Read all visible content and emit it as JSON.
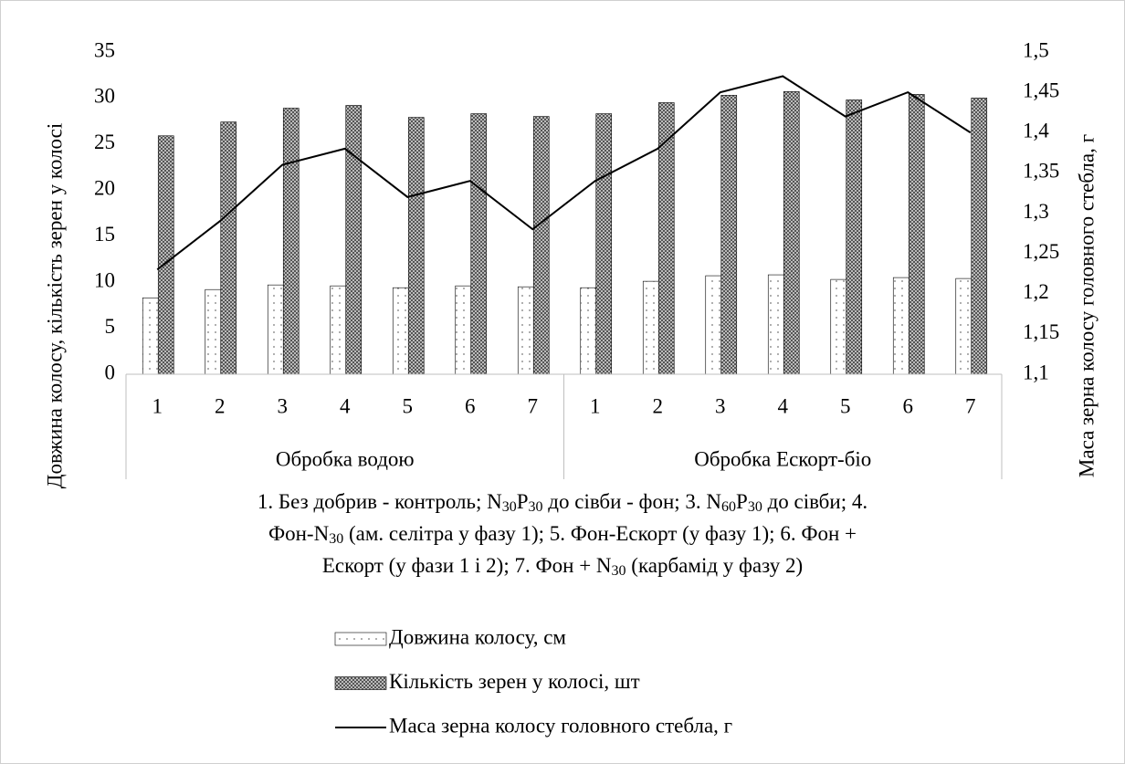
{
  "chart_data": {
    "type": "bar_line",
    "ylabel": "Довжина колосу, кількість зерен у колосі",
    "y2label": "Маса зерна колосу головного стебла, г",
    "groups": [
      "Обробка водою",
      "Обробка Ескорт-біо"
    ],
    "categories": [
      "1",
      "2",
      "3",
      "4",
      "5",
      "6",
      "7",
      "1",
      "2",
      "3",
      "4",
      "5",
      "6",
      "7"
    ],
    "series": [
      {
        "name": "Довжина колосу, см",
        "type": "bar",
        "color": "#ffffff",
        "values": [
          8.3,
          9.2,
          9.7,
          9.6,
          9.4,
          9.6,
          9.5,
          9.4,
          10.1,
          10.7,
          10.8,
          10.3,
          10.5,
          10.4
        ]
      },
      {
        "name": "Кількість зерен у колосі, шт",
        "type": "bar",
        "color": "#7a7a7a",
        "values": [
          25.9,
          27.4,
          28.9,
          29.2,
          27.9,
          28.3,
          28.0,
          28.3,
          29.5,
          30.3,
          30.7,
          29.8,
          30.4,
          30.0
        ]
      },
      {
        "name": "Маса зерна колосу головного стебла, г",
        "type": "line",
        "color": "#000000",
        "axis": "y2",
        "values": [
          1.23,
          1.29,
          1.36,
          1.38,
          1.32,
          1.34,
          1.28,
          1.34,
          1.38,
          1.45,
          1.47,
          1.42,
          1.45,
          1.4
        ]
      }
    ],
    "ylim": [
      0,
      35
    ],
    "yticks": [
      0,
      5,
      10,
      15,
      20,
      25,
      30,
      35
    ],
    "y2lim": [
      1.1,
      1.5
    ],
    "y2ticks": [
      {
        "value": 1.1,
        "label": "1,1"
      },
      {
        "value": 1.15,
        "label": "1,15"
      },
      {
        "value": 1.2,
        "label": "1,2"
      },
      {
        "value": 1.25,
        "label": "1,25"
      },
      {
        "value": 1.3,
        "label": "1,3"
      },
      {
        "value": 1.35,
        "label": "1,35"
      },
      {
        "value": 1.4,
        "label": "1,4"
      },
      {
        "value": 1.45,
        "label": "1,45"
      },
      {
        "value": 1.5,
        "label": "1,5"
      }
    ],
    "caption": [
      [
        "1. Без добрив - контроль; N",
        "30",
        "P",
        "30",
        " до сівби - фон; 3. N",
        "60",
        "P",
        "30",
        " до сівби; 4."
      ],
      [
        "Фон-N",
        "30",
        " (ам. селітра у фазу 1); 5. Фон-Ескорт (у фазу 1); 6. Фон +"
      ],
      [
        "Ескорт (у фази 1 і 2);  7. Фон + N",
        "30",
        " (карбамід у фазу 2)"
      ]
    ],
    "legend": "bottom",
    "grid": false
  }
}
